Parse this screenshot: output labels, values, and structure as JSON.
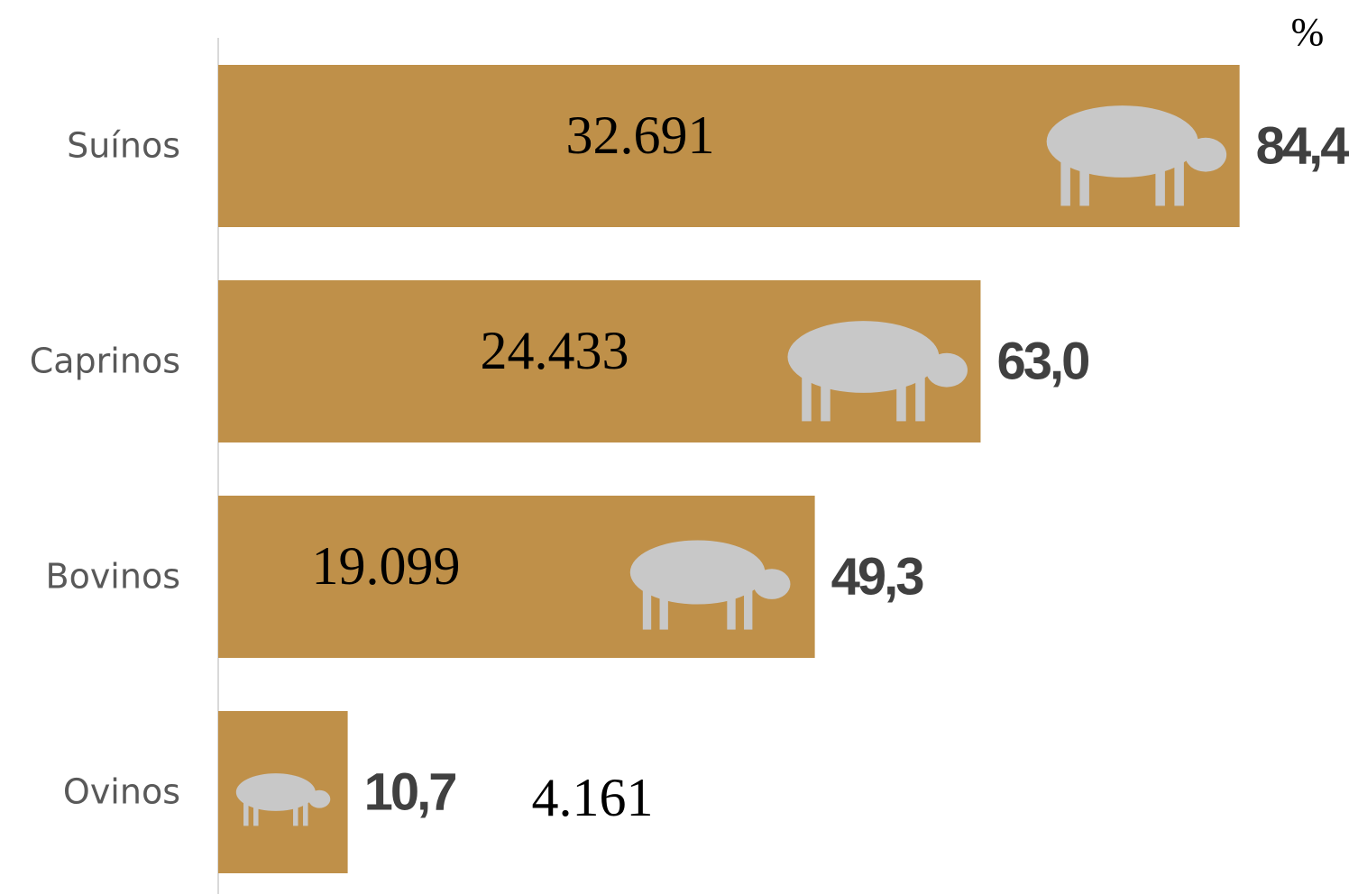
{
  "chart_data": {
    "type": "bar",
    "orientation": "horizontal",
    "unit": "%",
    "categories": [
      "Suínos",
      "Caprinos",
      "Bovinos",
      "Ovinos"
    ],
    "values": [
      84.4,
      63.0,
      49.3,
      10.7
    ],
    "value_labels": [
      "84,4",
      "63,0",
      "49,3",
      "10,7"
    ],
    "counts": [
      32691,
      24433,
      19099,
      4161
    ],
    "count_labels": [
      "32.691",
      "24.433",
      "19.099",
      "4.161"
    ],
    "color": "#bf9049",
    "xlim": [
      0,
      90
    ]
  }
}
